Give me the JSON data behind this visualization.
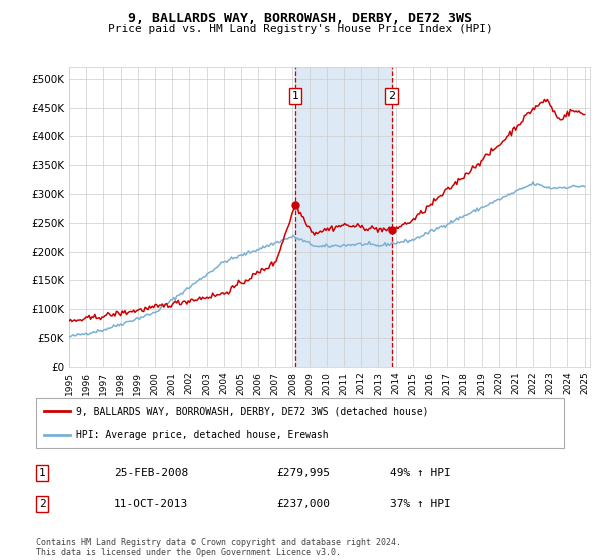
{
  "title": "9, BALLARDS WAY, BORROWASH, DERBY, DE72 3WS",
  "subtitle": "Price paid vs. HM Land Registry's House Price Index (HPI)",
  "sale1_date": "25-FEB-2008",
  "sale1_price": 279995,
  "sale1_pct": "49% ↑ HPI",
  "sale2_date": "11-OCT-2013",
  "sale2_price": 237000,
  "sale2_pct": "37% ↑ HPI",
  "red_color": "#cc0000",
  "blue_color": "#7bafd4",
  "shade_color": "#ddeaf5",
  "legend_label_red": "9, BALLARDS WAY, BORROWASH, DERBY, DE72 3WS (detached house)",
  "legend_label_blue": "HPI: Average price, detached house, Erewash",
  "footer": "Contains HM Land Registry data © Crown copyright and database right 2024.\nThis data is licensed under the Open Government Licence v3.0.",
  "ylim": [
    0,
    520000
  ],
  "yticks": [
    0,
    50000,
    100000,
    150000,
    200000,
    250000,
    300000,
    350000,
    400000,
    450000,
    500000
  ],
  "sale1_x": 2008.15,
  "sale2_x": 2013.78,
  "xstart": 1995,
  "xend": 2025
}
